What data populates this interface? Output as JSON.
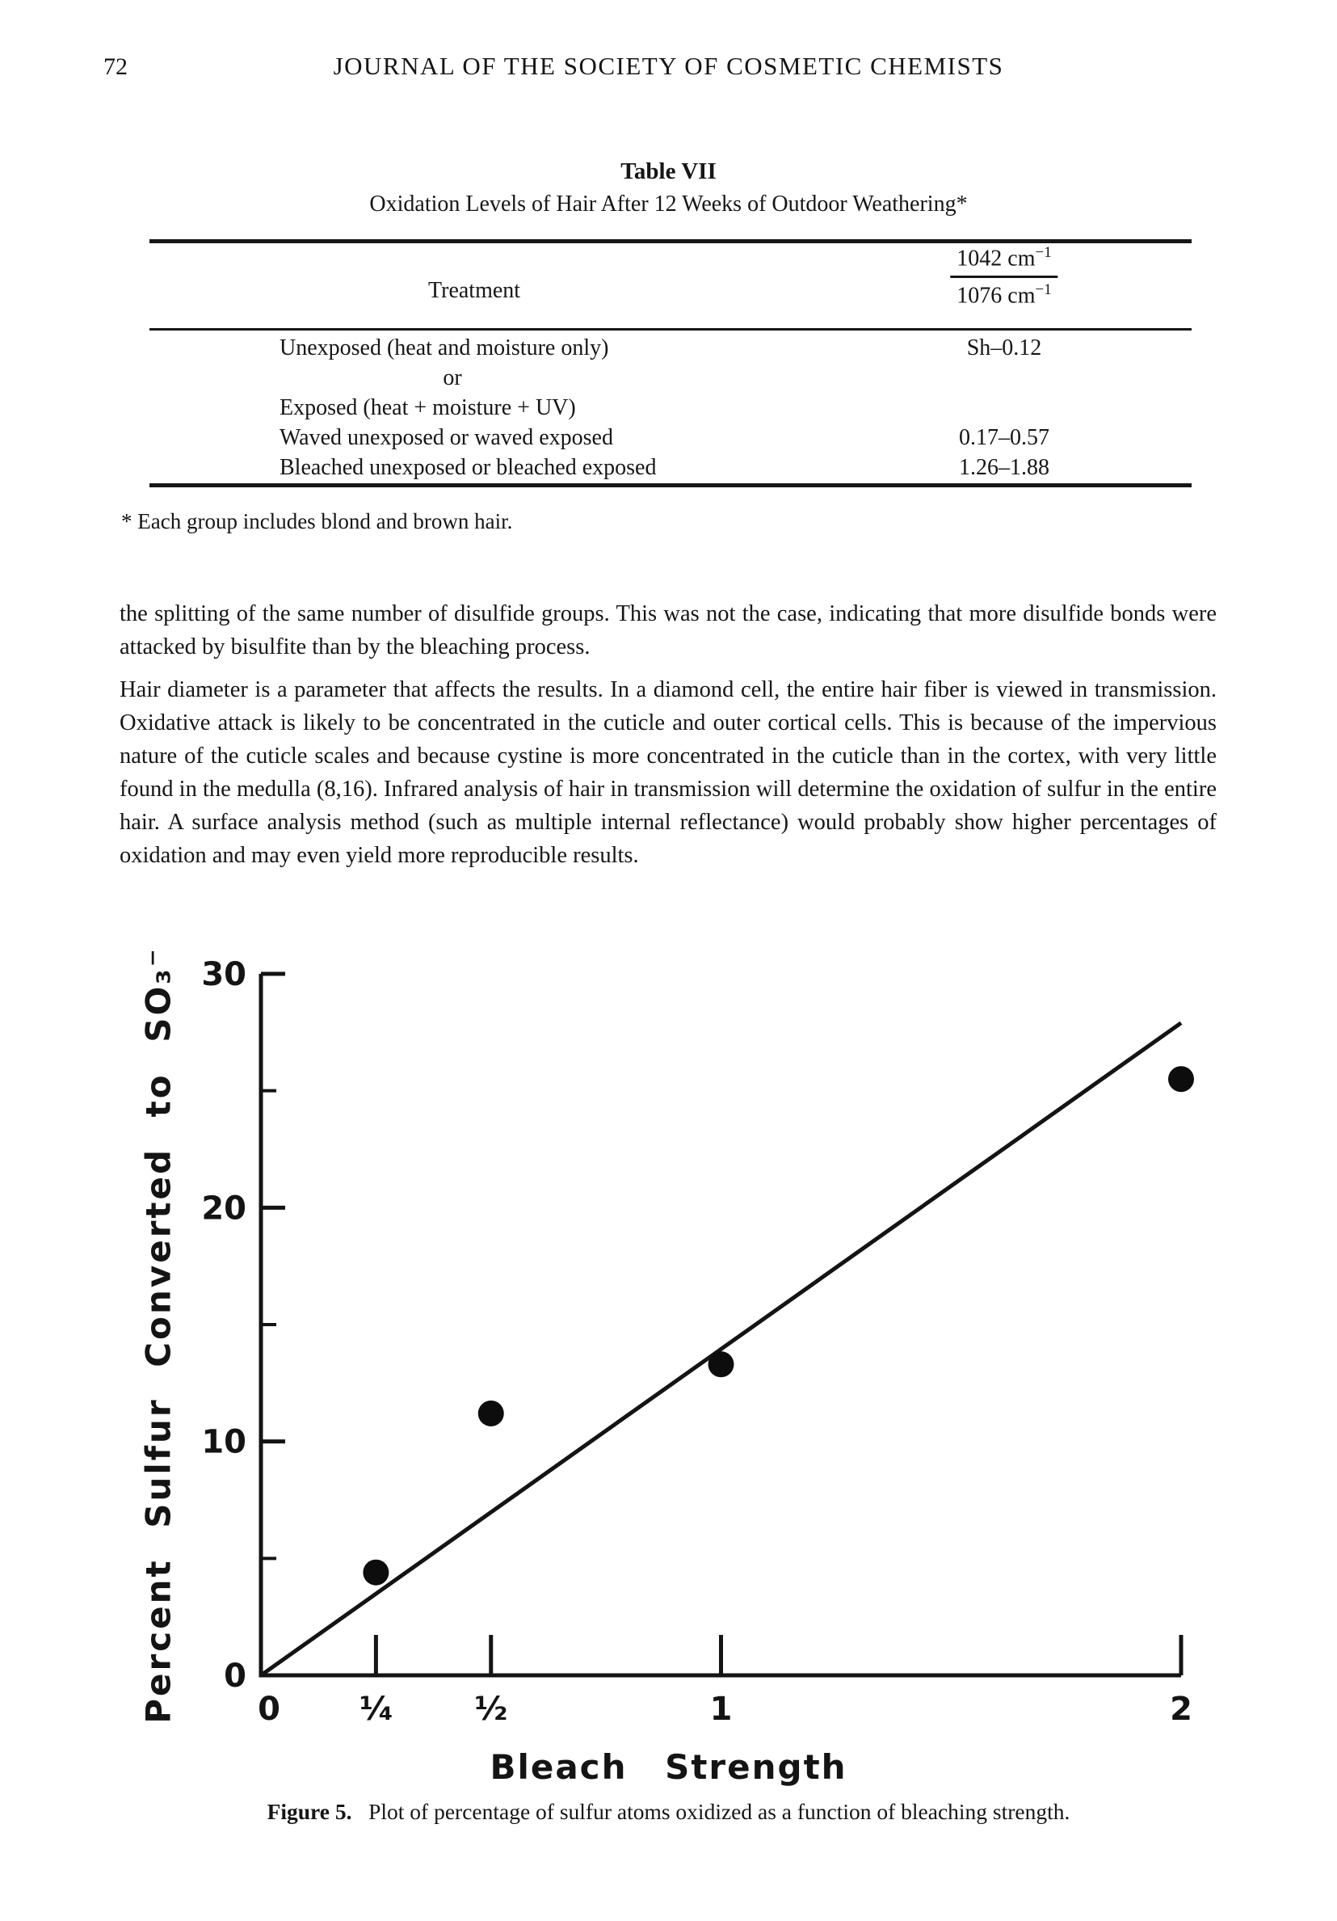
{
  "page": {
    "number": "72",
    "header": "JOURNAL OF THE SOCIETY OF COSMETIC CHEMISTS"
  },
  "table": {
    "title": "Table VII",
    "subtitle": "Oxidation Levels of Hair After 12 Weeks of Outdoor Weathering*",
    "columns": {
      "treatment": "Treatment",
      "ratio_numerator": "1042 cm",
      "ratio_denominator": "1076 cm",
      "ratio_exponent": "−1"
    },
    "rows": [
      {
        "treatment": "Unexposed (heat and moisture only)",
        "value": "Sh–0.12"
      },
      {
        "treatment": "or",
        "value": ""
      },
      {
        "treatment": "Exposed (heat + moisture + UV)",
        "value": ""
      },
      {
        "treatment": "Waved unexposed or waved exposed",
        "value": "0.17–0.57"
      },
      {
        "treatment": "Bleached unexposed or bleached exposed",
        "value": "1.26–1.88"
      }
    ],
    "footnote": "* Each group includes blond and brown hair."
  },
  "paragraphs": [
    "the splitting of the same number of disulfide groups. This was not the case, indicating that more disulfide bonds were attacked by bisulfite than by the bleaching process.",
    "Hair diameter is a parameter that affects the results. In a diamond cell, the entire hair fiber is viewed in transmission. Oxidative attack is likely to be concentrated in the cuticle and outer cortical cells. This is because of the impervious nature of the cuticle scales and because cystine is more concentrated in the cuticle than in the cortex, with very little found in the medulla (8,16). Infrared analysis of hair in transmission will determine the oxidation of sulfur in the entire hair. A surface analysis method (such as multiple internal reflectance) would probably show higher percentages of oxidation and may even yield more reproducible results."
  ],
  "figure": {
    "caption_label": "Figure 5.",
    "caption_text": "Plot of percentage of sulfur atoms oxidized as a function of bleaching strength."
  },
  "chart_data": {
    "type": "scatter",
    "title": "",
    "xlabel": "Bleach Strength",
    "ylabel": "Percent Sulfur Converted to SO₃⁻",
    "xlim": [
      0,
      2
    ],
    "ylim": [
      0,
      30
    ],
    "grid": false,
    "axis_color": "#141414",
    "point_color": "#0d0d0d",
    "x_ticks": [
      {
        "value": 0,
        "label": "0",
        "tick": false
      },
      {
        "value": 0.25,
        "label": "¹⁄₄",
        "tick": true
      },
      {
        "value": 0.5,
        "label": "¹⁄₂",
        "tick": true
      },
      {
        "value": 1,
        "label": "1",
        "tick": true
      },
      {
        "value": 2,
        "label": "2",
        "tick": true
      }
    ],
    "y_ticks_major": [
      {
        "value": 0,
        "label": "0"
      },
      {
        "value": 10,
        "label": "10"
      },
      {
        "value": 20,
        "label": "20"
      },
      {
        "value": 30,
        "label": "30"
      }
    ],
    "y_ticks_minor": [
      5,
      15,
      25
    ],
    "points": [
      [
        0.25,
        4.4
      ],
      [
        0.5,
        11.2
      ],
      [
        1.0,
        13.3
      ],
      [
        2.0,
        25.5
      ]
    ],
    "fit_line": {
      "x1": 0,
      "y1": 0,
      "x2": 2.0,
      "y2": 27.9
    }
  }
}
